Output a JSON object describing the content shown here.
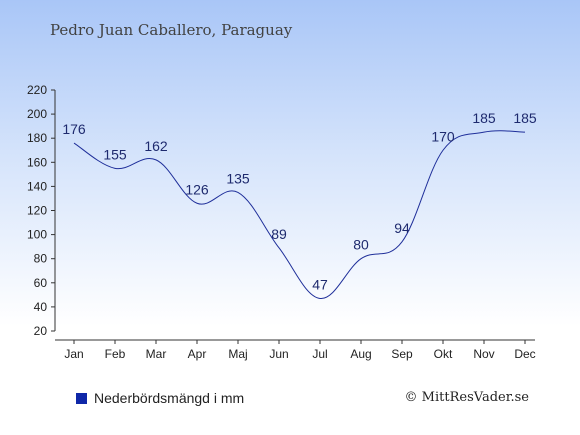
{
  "title": "Pedro Juan Caballero, Paraguay",
  "legend_label": "Nederbördsmängd i mm",
  "copyright": "© MittResVader.se",
  "colors": {
    "line": "#1f2f9a",
    "axis": "#333333",
    "swatch": "#0f27a8"
  },
  "chart_data": {
    "type": "line",
    "categories": [
      "Jan",
      "Feb",
      "Mar",
      "Apr",
      "Maj",
      "Jun",
      "Jul",
      "Aug",
      "Sep",
      "Okt",
      "Nov",
      "Dec"
    ],
    "series": [
      {
        "name": "Nederbördsmängd i mm",
        "values": [
          176,
          155,
          162,
          126,
          135,
          89,
          47,
          80,
          94,
          170,
          185,
          185
        ]
      }
    ],
    "ylim": [
      20,
      220
    ],
    "yticks": [
      20,
      40,
      60,
      80,
      100,
      120,
      140,
      160,
      180,
      200,
      220
    ],
    "grid": false,
    "legend": "bottom-left"
  }
}
